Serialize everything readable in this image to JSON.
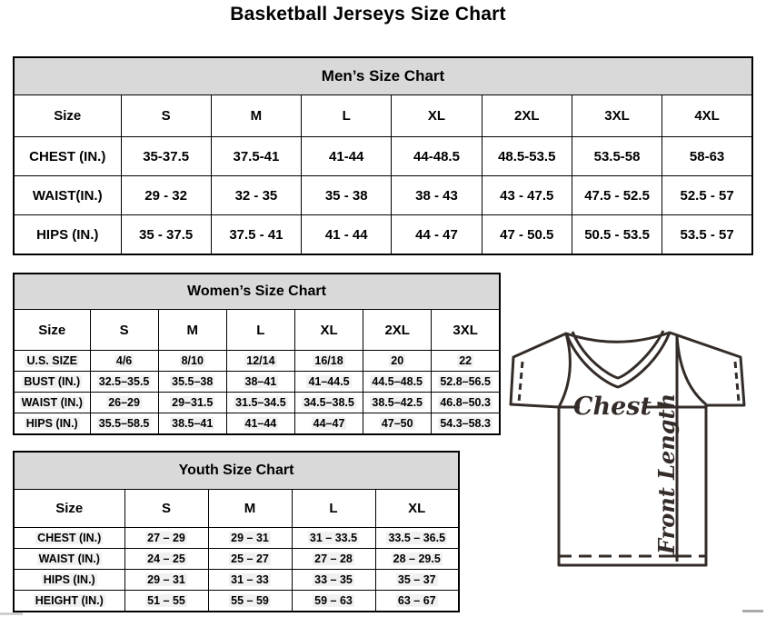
{
  "page": {
    "title": "Basketball Jerseys Size Chart"
  },
  "tables": [
    {
      "id": "mens",
      "caption": "Men’s Size Chart",
      "columns": [
        "Size",
        "S",
        "M",
        "L",
        "XL",
        "2XL",
        "3XL",
        "4XL"
      ],
      "rows": [
        {
          "label": "CHEST (IN.)",
          "values": [
            "35-37.5",
            "37.5-41",
            "41-44",
            "44-48.5",
            "48.5-53.5",
            "53.5-58",
            "58-63"
          ]
        },
        {
          "label": "WAIST(IN.)",
          "values": [
            "29 - 32",
            "32 - 35",
            "35 - 38",
            "38 - 43",
            "43 - 47.5",
            "47.5 - 52.5",
            "52.5 - 57"
          ]
        },
        {
          "label": "HIPS (IN.)",
          "values": [
            "35 - 37.5",
            "37.5 - 41",
            "41 - 44",
            "44 - 47",
            "47 - 50.5",
            "50.5 - 53.5",
            "53.5 - 57"
          ]
        }
      ]
    },
    {
      "id": "womens",
      "caption": "Women’s Size Chart",
      "columns": [
        "Size",
        "S",
        "M",
        "L",
        "XL",
        "2XL",
        "3XL"
      ],
      "rows": [
        {
          "label": "U.S. SIZE",
          "values": [
            "4/6",
            "8/10",
            "12/14",
            "16/18",
            "20",
            "22"
          ]
        },
        {
          "label": "BUST (IN.)",
          "values": [
            "32.5–35.5",
            "35.5–38",
            "38–41",
            "41–44.5",
            "44.5–48.5",
            "52.8–56.5"
          ]
        },
        {
          "label": "WAIST (IN.)",
          "values": [
            "26–29",
            "29–31.5",
            "31.5–34.5",
            "34.5–38.5",
            "38.5–42.5",
            "46.8–50.3"
          ]
        },
        {
          "label": "HIPS (IN.)",
          "values": [
            "35.5–58.5",
            "38.5–41",
            "41–44",
            "44–47",
            "47–50",
            "54.3–58.3"
          ]
        }
      ]
    },
    {
      "id": "youth",
      "caption": "Youth Size Chart",
      "columns": [
        "Size",
        "S",
        "M",
        "L",
        "XL"
      ],
      "rows": [
        {
          "label": "CHEST (IN.)",
          "values": [
            "27 – 29",
            "29 – 31",
            "31 – 33.5",
            "33.5 – 36.5"
          ]
        },
        {
          "label": "WAIST (IN.)",
          "values": [
            "24 – 25",
            "25 – 27",
            "27 – 28",
            "28 – 29.5"
          ]
        },
        {
          "label": "HIPS (IN.)",
          "values": [
            "29 – 31",
            "31 – 33",
            "33 – 35",
            "35 – 37"
          ]
        },
        {
          "label": "HEIGHT (IN.)",
          "values": [
            "51 – 55",
            "55 – 59",
            "59 – 63",
            "63 – 67"
          ]
        }
      ]
    }
  ],
  "diagram": {
    "chest_label": "Chest",
    "front_length_label": "Front Length"
  },
  "colors": {
    "table_header_bg": "#d9d9d9",
    "table_border": "#000000",
    "jersey_stroke": "#342c28"
  }
}
